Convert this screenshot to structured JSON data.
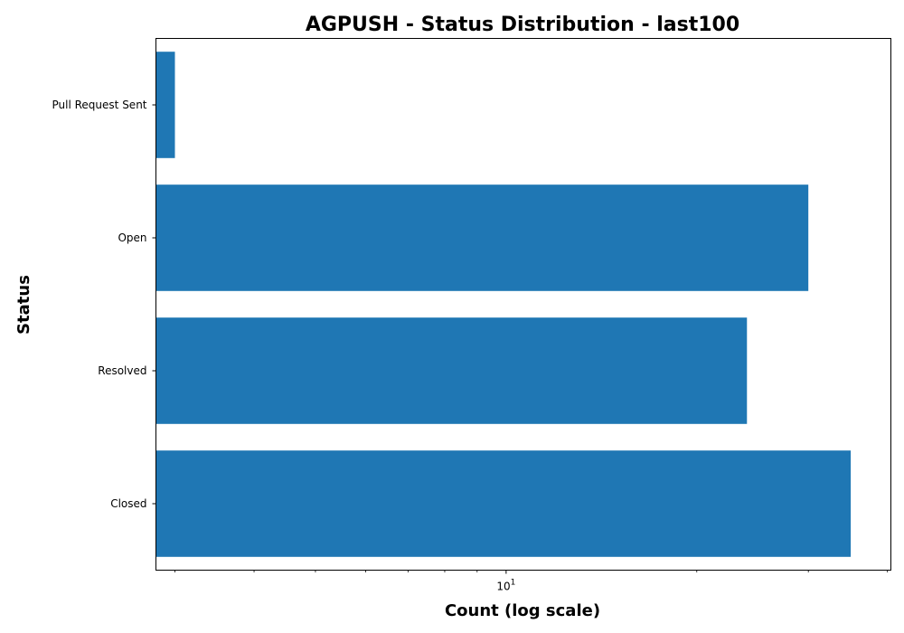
{
  "chart_data": {
    "type": "bar",
    "orientation": "horizontal",
    "title": "AGPUSH - Status Distribution - last100",
    "xlabel": "Count (log scale)",
    "ylabel": "Status",
    "x_scale": "log",
    "xlim": [
      2.8,
      40.5
    ],
    "x_major_ticks": [
      {
        "value": 10,
        "base": "10",
        "exponent": "1"
      }
    ],
    "x_minor_ticks": [
      3,
      4,
      5,
      6,
      7,
      8,
      9,
      20,
      30,
      40
    ],
    "categories": [
      "Pull Request Sent",
      "Open",
      "Resolved",
      "Closed"
    ],
    "values": [
      3,
      30,
      24,
      35
    ],
    "bar_color": "#1f77b4",
    "grid": false,
    "legend": "none"
  }
}
